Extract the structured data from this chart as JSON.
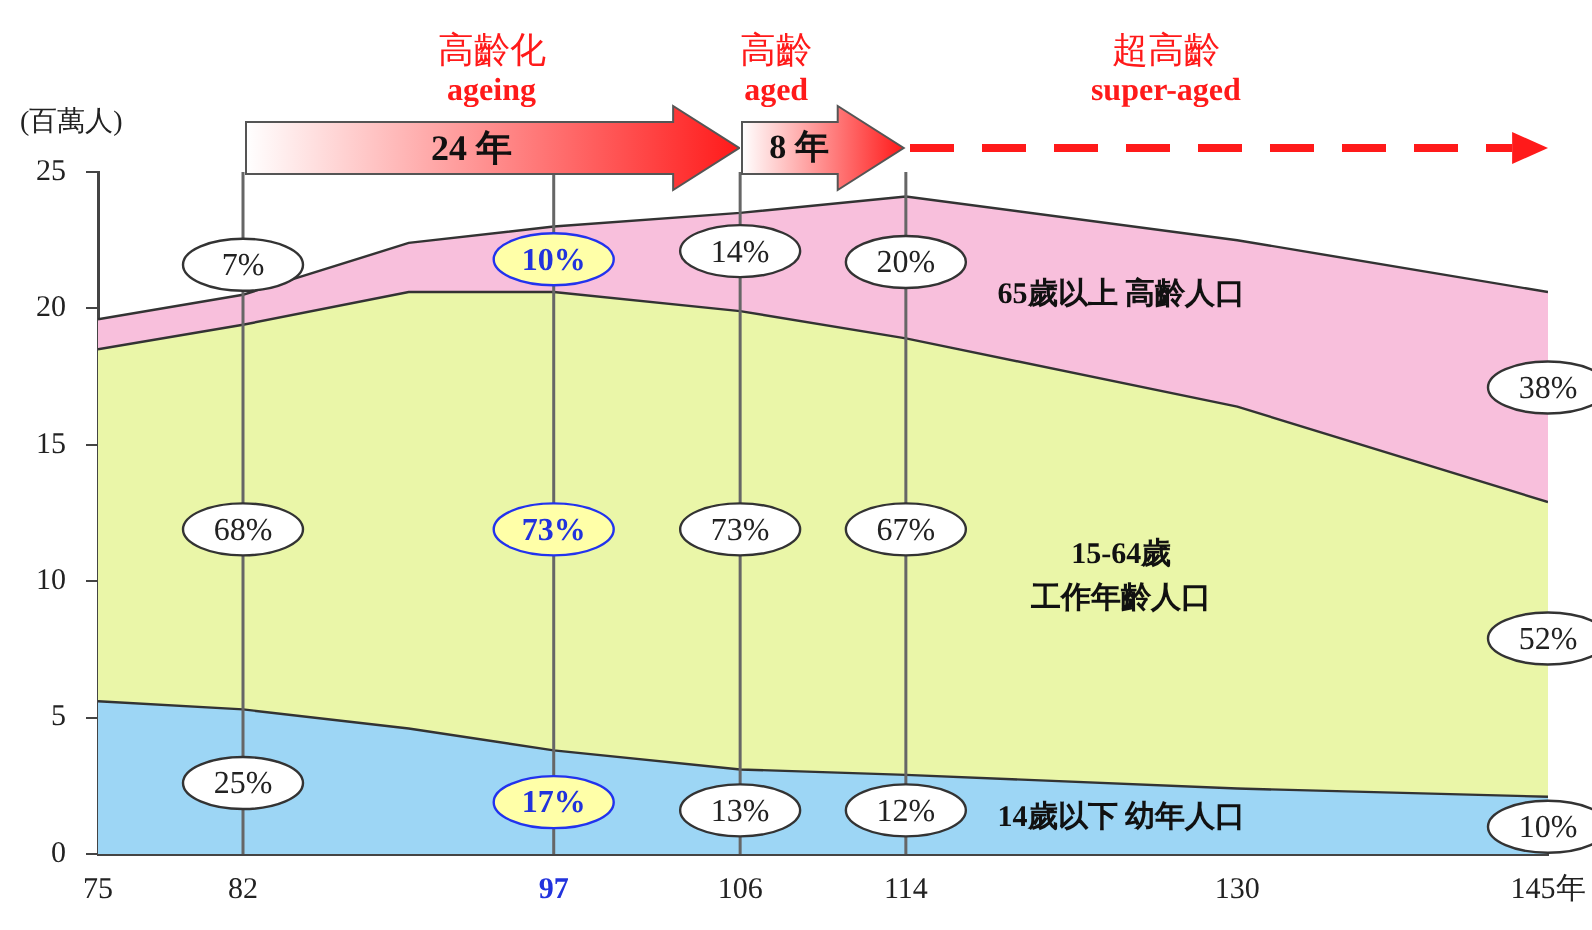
{
  "chart_data": {
    "type": "area",
    "stacked": true,
    "ylabel": "(百萬人)",
    "x": [
      75,
      82,
      90,
      97,
      106,
      114,
      130,
      145
    ],
    "series": [
      {
        "name": "14歲以下 幼年人口",
        "color": "#9dd6f5",
        "values": [
          5.6,
          5.3,
          4.6,
          3.8,
          3.1,
          2.9,
          2.4,
          2.1
        ]
      },
      {
        "name": "15-64歲工作年齡人口",
        "color": "#eaf6a8",
        "values": [
          12.9,
          14.1,
          16.0,
          16.8,
          16.8,
          16.0,
          14.0,
          10.8
        ]
      },
      {
        "name": "65歲以上 高齡人口",
        "color": "#f8bfdc",
        "values": [
          1.1,
          1.1,
          1.8,
          2.4,
          3.6,
          5.2,
          6.1,
          7.7
        ]
      }
    ],
    "xlim": [
      75,
      145
    ],
    "xticks": [
      75,
      82,
      97,
      106,
      114,
      130,
      {
        "value": 145,
        "label": "145年"
      }
    ],
    "ylim": [
      0,
      25
    ],
    "yticks": [
      0,
      5,
      10,
      15,
      20,
      25
    ],
    "grid": false,
    "legend": "right",
    "ref_lines": [
      {
        "axis": "x",
        "value": 82
      },
      {
        "axis": "x",
        "value": 97
      },
      {
        "axis": "x",
        "value": 106
      },
      {
        "axis": "x",
        "value": 114
      }
    ],
    "annotations": [
      "高齡化",
      "ageing",
      "高齡",
      "aged",
      "超高齡",
      "super-aged",
      "24 年",
      "8 年",
      {
        "text": "7%",
        "x": 82,
        "y": 21.6
      },
      {
        "text": "68%",
        "x": 82,
        "y": 11.9
      },
      {
        "text": "25%",
        "x": 82,
        "y": 2.6
      },
      {
        "text": "10%",
        "x": 97,
        "y": 21.8
      },
      {
        "text": "73%",
        "x": 97,
        "y": 11.9
      },
      {
        "text": "17%",
        "x": 97,
        "y": 1.9
      },
      {
        "text": "14%",
        "x": 106,
        "y": 22.1
      },
      {
        "text": "73%",
        "x": 106,
        "y": 11.9
      },
      {
        "text": "13%",
        "x": 106,
        "y": 1.6
      },
      {
        "text": "20%",
        "x": 114,
        "y": 21.7
      },
      {
        "text": "67%",
        "x": 114,
        "y": 11.9
      },
      {
        "text": "12%",
        "x": 114,
        "y": 1.6
      },
      {
        "text": "38%",
        "x": 145,
        "y": 17.1
      },
      {
        "text": "52%",
        "x": 145,
        "y": 7.9
      },
      {
        "text": "10%",
        "x": 145,
        "y": 1.0
      }
    ]
  }
}
